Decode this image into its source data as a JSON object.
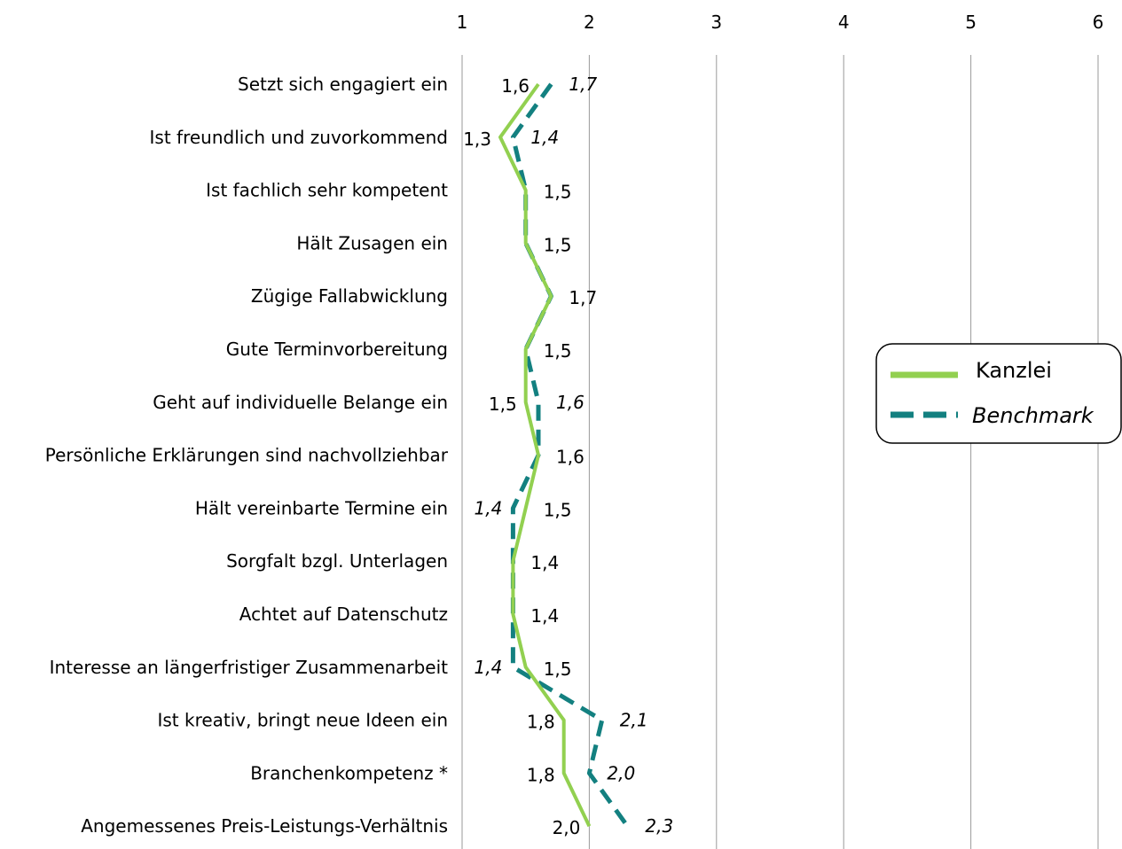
{
  "chart_data": {
    "type": "line",
    "orientation": "horizontal",
    "categories": [
      "Setzt sich engagiert ein",
      "Ist freundlich und zuvorkommend",
      "Ist fachlich sehr kompetent",
      "Hält Zusagen ein",
      "Zügige Fallabwicklung",
      "Gute Terminvorbereitung",
      "Geht auf individuelle Belange ein",
      "Persönliche Erklärungen sind nachvollziehbar",
      "Hält vereinbarte Termine ein",
      "Sorgfalt bzgl. Unterlagen",
      "Achtet auf Datenschutz",
      "Interesse an längerfristiger Zusammenarbeit",
      "Ist kreativ, bringt neue Ideen ein",
      "Branchenkompetenz *",
      "Angemessenes Preis-Leistungs-Verhältnis"
    ],
    "series": [
      {
        "name": "Kanzlei",
        "color": "#92d050",
        "style": "solid",
        "values": [
          1.6,
          1.3,
          1.5,
          1.5,
          1.7,
          1.5,
          1.5,
          1.6,
          1.5,
          1.4,
          1.4,
          1.5,
          1.8,
          1.8,
          2.0
        ],
        "labels": [
          "1,6",
          "1,3",
          "1,5",
          "1,5",
          "1,7",
          "1,5",
          "1,5",
          "1,6",
          "1,5",
          "1,4",
          "1,4",
          "1,5",
          "1,8",
          "1,8",
          "2,0"
        ]
      },
      {
        "name": "Benchmark",
        "color": "#138080",
        "style": "dashed",
        "values": [
          1.7,
          1.4,
          1.5,
          1.5,
          1.7,
          1.5,
          1.6,
          1.6,
          1.4,
          1.4,
          1.4,
          1.4,
          2.1,
          2.0,
          2.3
        ],
        "labels": [
          "1,7",
          "1,4",
          null,
          null,
          null,
          null,
          "1,6",
          null,
          "1,4",
          null,
          null,
          "1,4",
          "2,1",
          "2,0",
          "2,3"
        ]
      }
    ],
    "x_ticks": [
      "1",
      "2",
      "3",
      "4",
      "5",
      "6"
    ],
    "xlim": [
      1,
      6
    ],
    "grid": true,
    "legend_position": "right"
  }
}
